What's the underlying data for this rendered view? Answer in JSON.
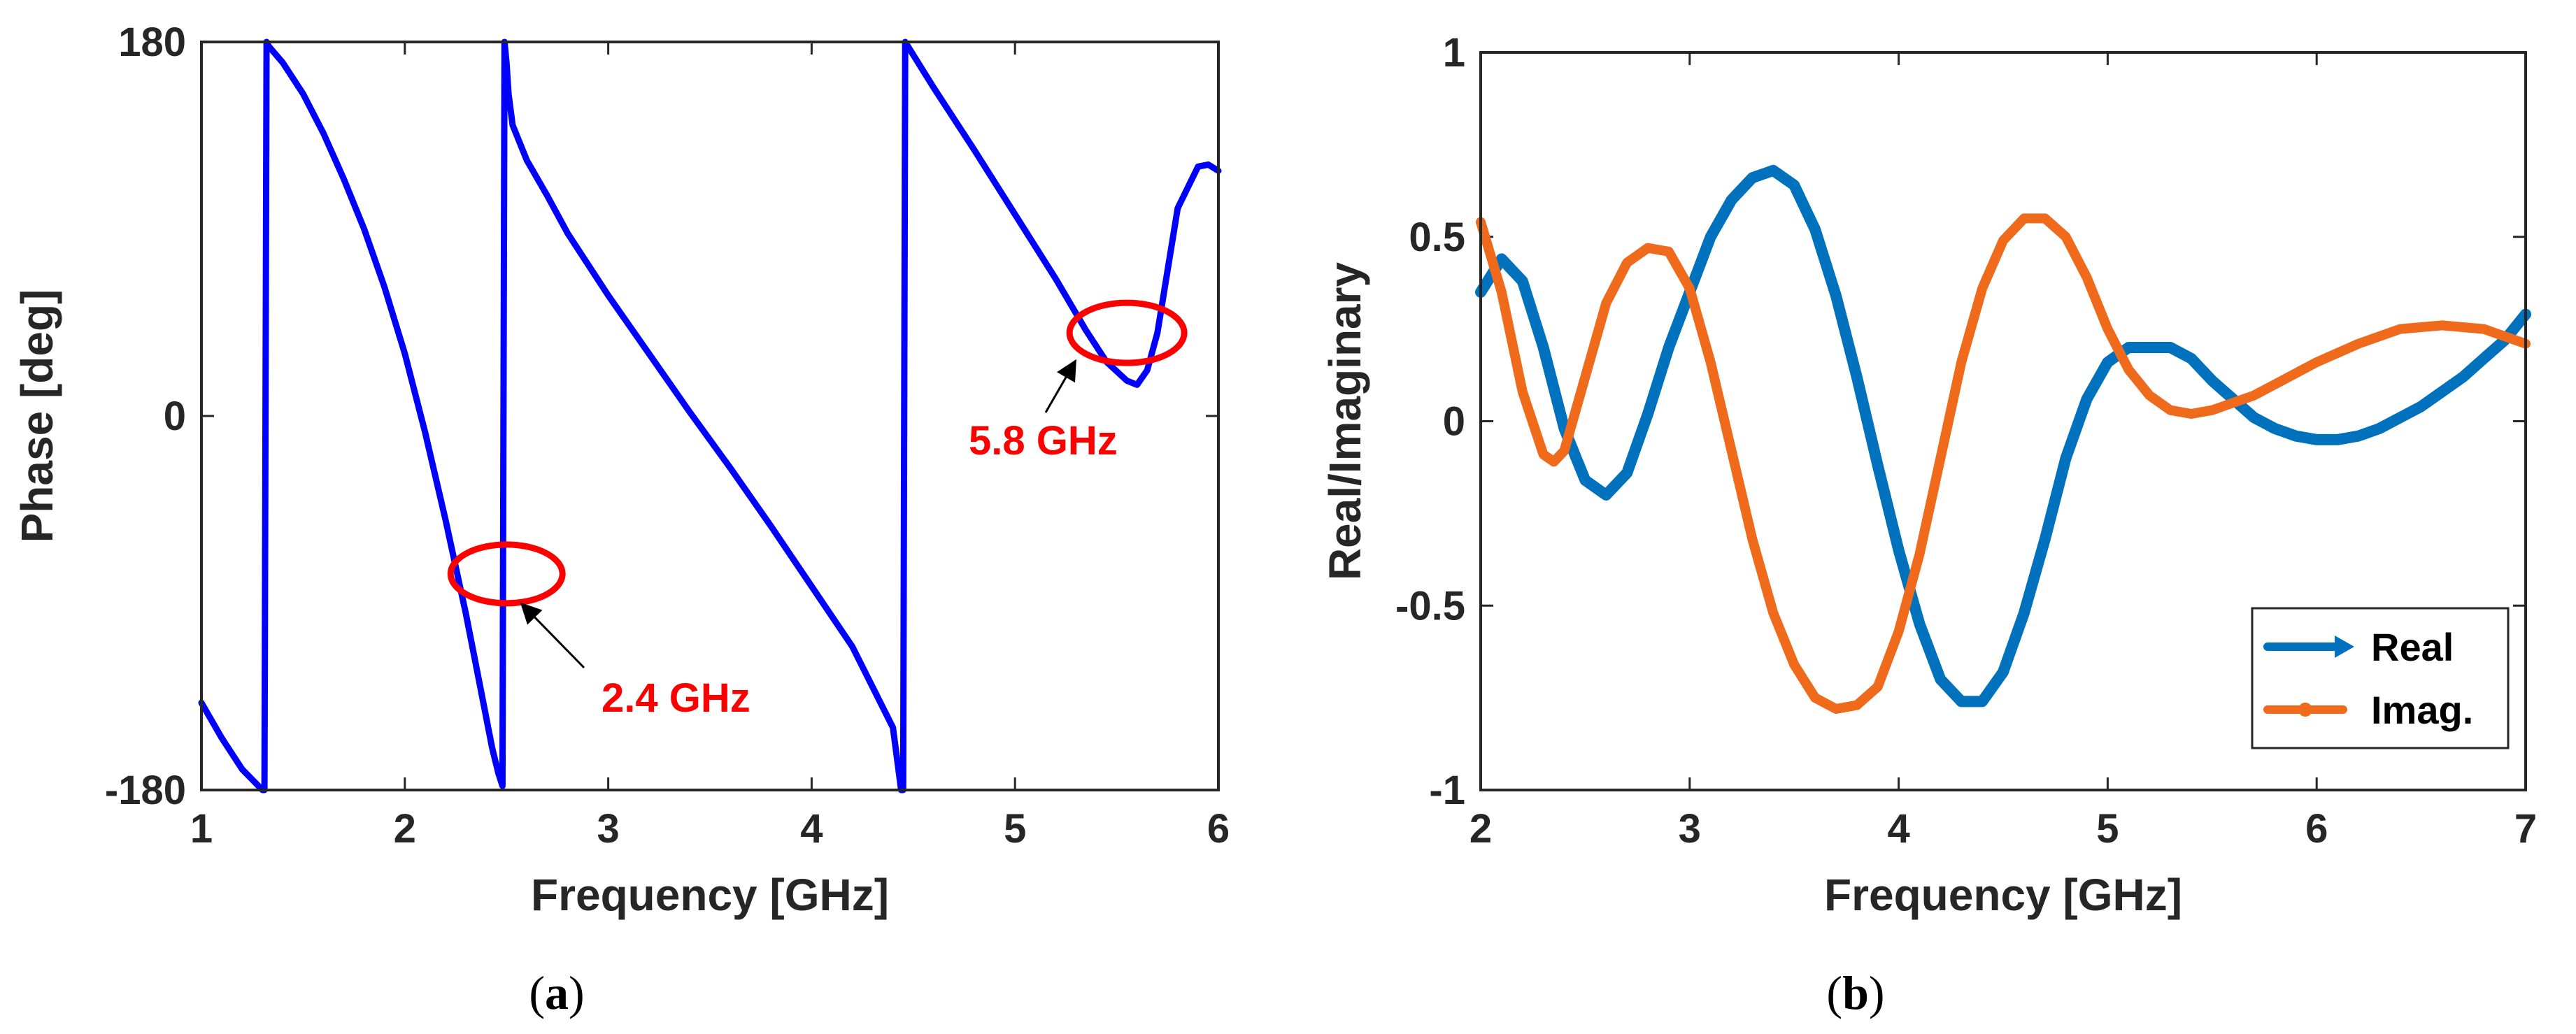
{
  "chart_data": [
    {
      "type": "line",
      "panel": "(a)",
      "panel_letter": "a",
      "title": "",
      "xlabel": "Frequency [GHz]",
      "ylabel": "Phase [deg]",
      "xlim": [
        1,
        6
      ],
      "ylim": [
        -180,
        180
      ],
      "xticks": [
        "1",
        "2",
        "3",
        "4",
        "5",
        "6"
      ],
      "yticks": [
        "-180",
        "0",
        "180"
      ],
      "series": [
        {
          "name": "Phase",
          "color": "#0000ff",
          "x": [
            1.0,
            1.1,
            1.2,
            1.3,
            1.31,
            1.32,
            1.33,
            1.4,
            1.5,
            1.6,
            1.7,
            1.8,
            1.9,
            2.0,
            2.1,
            2.2,
            2.3,
            2.35,
            2.4,
            2.43,
            2.46,
            2.48,
            2.49,
            2.5,
            2.51,
            2.53,
            2.6,
            2.7,
            2.8,
            3.0,
            3.2,
            3.4,
            3.6,
            3.8,
            4.0,
            4.2,
            4.4,
            4.44,
            4.45,
            4.46,
            4.6,
            4.8,
            5.0,
            5.2,
            5.35,
            5.45,
            5.55,
            5.6,
            5.65,
            5.7,
            5.75,
            5.8,
            5.9,
            5.95,
            6.0
          ],
          "y": [
            -138,
            -155,
            -170,
            -180,
            -180,
            180,
            178,
            170,
            155,
            136,
            114,
            90,
            62,
            30,
            -8,
            -50,
            -95,
            -120,
            -145,
            -160,
            -172,
            -178,
            180,
            170,
            155,
            140,
            123,
            106,
            88,
            58,
            30,
            2,
            -25,
            -53,
            -82,
            -111,
            -150,
            -180,
            -180,
            180,
            158,
            128,
            97,
            66,
            41,
            26,
            17,
            15,
            22,
            40,
            70,
            100,
            120,
            121,
            118
          ]
        }
      ],
      "annotations": [
        {
          "text": "2.4 GHz",
          "x": 2.5,
          "y": -76,
          "shape": "ellipse",
          "color": "#ff0000"
        },
        {
          "text": "5.8 GHz",
          "x": 5.55,
          "y": 40,
          "shape": "ellipse",
          "color": "#ff0000"
        }
      ]
    },
    {
      "type": "line",
      "panel": "(b)",
      "panel_letter": "b",
      "title": "",
      "xlabel": "Frequency [GHz]",
      "ylabel": "Real/Imaginary",
      "xlim": [
        2,
        7
      ],
      "ylim": [
        -1,
        1
      ],
      "xticks": [
        "2",
        "3",
        "4",
        "5",
        "6",
        "7"
      ],
      "yticks": [
        "-1",
        "-0.5",
        "0",
        "0.5",
        "1"
      ],
      "legend": "bottom-right",
      "series": [
        {
          "name": "Real",
          "color": "#0072bd",
          "x": [
            2.0,
            2.1,
            2.2,
            2.3,
            2.4,
            2.5,
            2.6,
            2.7,
            2.8,
            2.9,
            3.0,
            3.1,
            3.2,
            3.3,
            3.4,
            3.5,
            3.6,
            3.7,
            3.8,
            3.9,
            4.0,
            4.1,
            4.2,
            4.3,
            4.4,
            4.5,
            4.6,
            4.7,
            4.8,
            4.9,
            5.0,
            5.1,
            5.2,
            5.3,
            5.4,
            5.5,
            5.6,
            5.7,
            5.8,
            5.9,
            6.0,
            6.1,
            6.2,
            6.3,
            6.4,
            6.5,
            6.6,
            6.7,
            6.8,
            6.9,
            7.0
          ],
          "y": [
            0.35,
            0.44,
            0.38,
            0.2,
            -0.02,
            -0.16,
            -0.2,
            -0.14,
            0.02,
            0.2,
            0.35,
            0.5,
            0.6,
            0.66,
            0.68,
            0.64,
            0.52,
            0.34,
            0.12,
            -0.12,
            -0.35,
            -0.55,
            -0.7,
            -0.76,
            -0.76,
            -0.68,
            -0.52,
            -0.32,
            -0.1,
            0.06,
            0.16,
            0.2,
            0.2,
            0.2,
            0.17,
            0.11,
            0.06,
            0.01,
            -0.02,
            -0.04,
            -0.05,
            -0.05,
            -0.04,
            -0.02,
            0.01,
            0.04,
            0.08,
            0.12,
            0.17,
            0.22,
            0.29
          ]
        },
        {
          "name": "Imag.",
          "color": "#f06a1c",
          "x": [
            2.0,
            2.1,
            2.2,
            2.3,
            2.35,
            2.4,
            2.5,
            2.6,
            2.7,
            2.8,
            2.9,
            3.0,
            3.1,
            3.2,
            3.3,
            3.4,
            3.5,
            3.6,
            3.7,
            3.8,
            3.9,
            4.0,
            4.1,
            4.2,
            4.3,
            4.4,
            4.5,
            4.6,
            4.7,
            4.8,
            4.9,
            5.0,
            5.1,
            5.2,
            5.3,
            5.4,
            5.5,
            5.6,
            5.7,
            5.8,
            5.9,
            6.0,
            6.2,
            6.4,
            6.6,
            6.8,
            7.0
          ],
          "y": [
            0.54,
            0.35,
            0.08,
            -0.09,
            -0.11,
            -0.08,
            0.12,
            0.32,
            0.43,
            0.47,
            0.46,
            0.36,
            0.16,
            -0.08,
            -0.32,
            -0.52,
            -0.66,
            -0.75,
            -0.78,
            -0.77,
            -0.72,
            -0.57,
            -0.36,
            -0.1,
            0.16,
            0.36,
            0.49,
            0.55,
            0.55,
            0.5,
            0.39,
            0.25,
            0.14,
            0.07,
            0.03,
            0.02,
            0.03,
            0.05,
            0.07,
            0.1,
            0.13,
            0.16,
            0.21,
            0.25,
            0.26,
            0.25,
            0.21
          ]
        }
      ]
    }
  ]
}
